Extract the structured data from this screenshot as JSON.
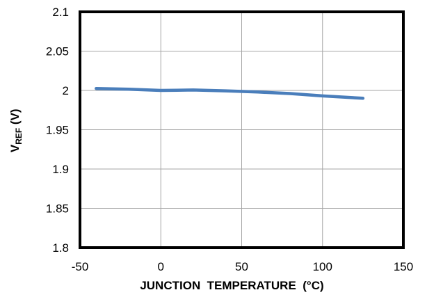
{
  "chart_data": {
    "type": "line",
    "x_axis": {
      "label": "JUNCTION  TEMPERATURE  (°C)",
      "lim": [
        -50,
        150
      ],
      "ticks": [
        -50,
        0,
        50,
        100,
        150
      ],
      "tick_labels": [
        "-50",
        "0",
        "50",
        "100",
        "150"
      ]
    },
    "y_axis": {
      "label_main": "V",
      "label_subscript": "REF",
      "label_suffix": " (V)",
      "lim": [
        1.8,
        2.1
      ],
      "ticks": [
        1.8,
        1.85,
        1.9,
        1.95,
        2.0,
        2.05,
        2.1
      ],
      "tick_labels": [
        "1.8",
        "1.85",
        "1.9",
        "1.95",
        "2",
        "2.05",
        "2.1"
      ]
    },
    "grid": true,
    "legend": "none",
    "series": [
      {
        "color": "#4a7ebb",
        "x": [
          -40,
          -20,
          0,
          20,
          40,
          60,
          80,
          100,
          125
        ],
        "y": [
          2.0025,
          2.0015,
          2.0,
          2.0005,
          1.9995,
          1.998,
          1.996,
          1.993,
          1.99
        ]
      }
    ]
  }
}
